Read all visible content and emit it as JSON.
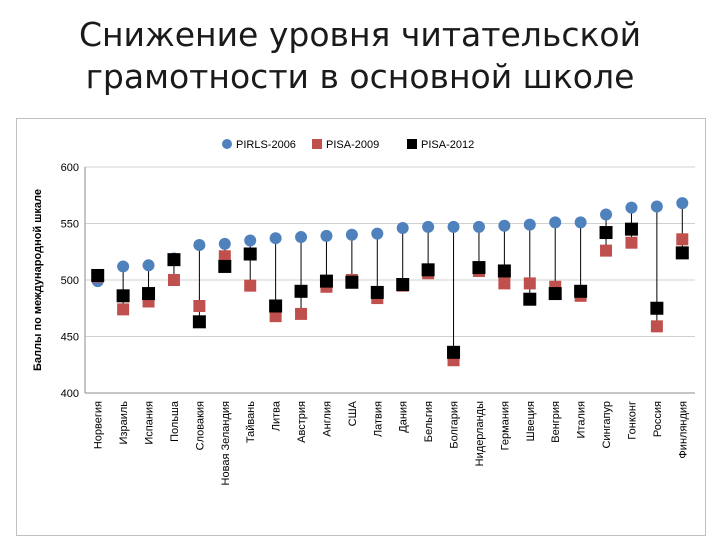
{
  "slide": {
    "title_line1": "Снижение уровня читательской",
    "title_line2": "грамотности в основной школе"
  },
  "chart_data": {
    "type": "scatter",
    "ylabel": "Баллы по международной шкале",
    "ylim": [
      400,
      600
    ],
    "yticks": [
      400,
      450,
      500,
      550,
      600
    ],
    "grid": true,
    "legend_position": "top",
    "categories": [
      "Норвегия",
      "Израиль",
      "Испания",
      "Польша",
      "Словакия",
      "Новая Зеландия",
      "Тайвань",
      "Литва",
      "Австрия",
      "Англия",
      "США",
      "Латвия",
      "Дания",
      "Бельгия",
      "Болгария",
      "Нидерланды",
      "Германия",
      "Швеция",
      "Венгрия",
      "Италия",
      "Сингапур",
      "Гонконг",
      "Россия",
      "Финляндия"
    ],
    "series": [
      {
        "name": "PIRLS-2006",
        "color": "#4f81bd",
        "marker": "circle",
        "values": [
          499,
          512,
          513,
          519,
          531,
          532,
          535,
          537,
          538,
          539,
          540,
          541,
          546,
          547,
          547,
          547,
          548,
          549,
          551,
          551,
          558,
          564,
          565,
          568
        ]
      },
      {
        "name": "PISA-2009",
        "color": "#c0504d",
        "marker": "square",
        "values": [
          503,
          474,
          481,
          500,
          477,
          521,
          495,
          468,
          470,
          494,
          500,
          484,
          495,
          506,
          429,
          508,
          497,
          497,
          494,
          486,
          526,
          533,
          459,
          536
        ]
      },
      {
        "name": "PISA-2012",
        "color": "#000000",
        "marker": "square",
        "values": [
          504,
          486,
          488,
          518,
          463,
          512,
          523,
          477,
          490,
          499,
          498,
          489,
          496,
          509,
          436,
          511,
          508,
          483,
          488,
          490,
          542,
          545,
          475,
          524
        ]
      }
    ]
  }
}
